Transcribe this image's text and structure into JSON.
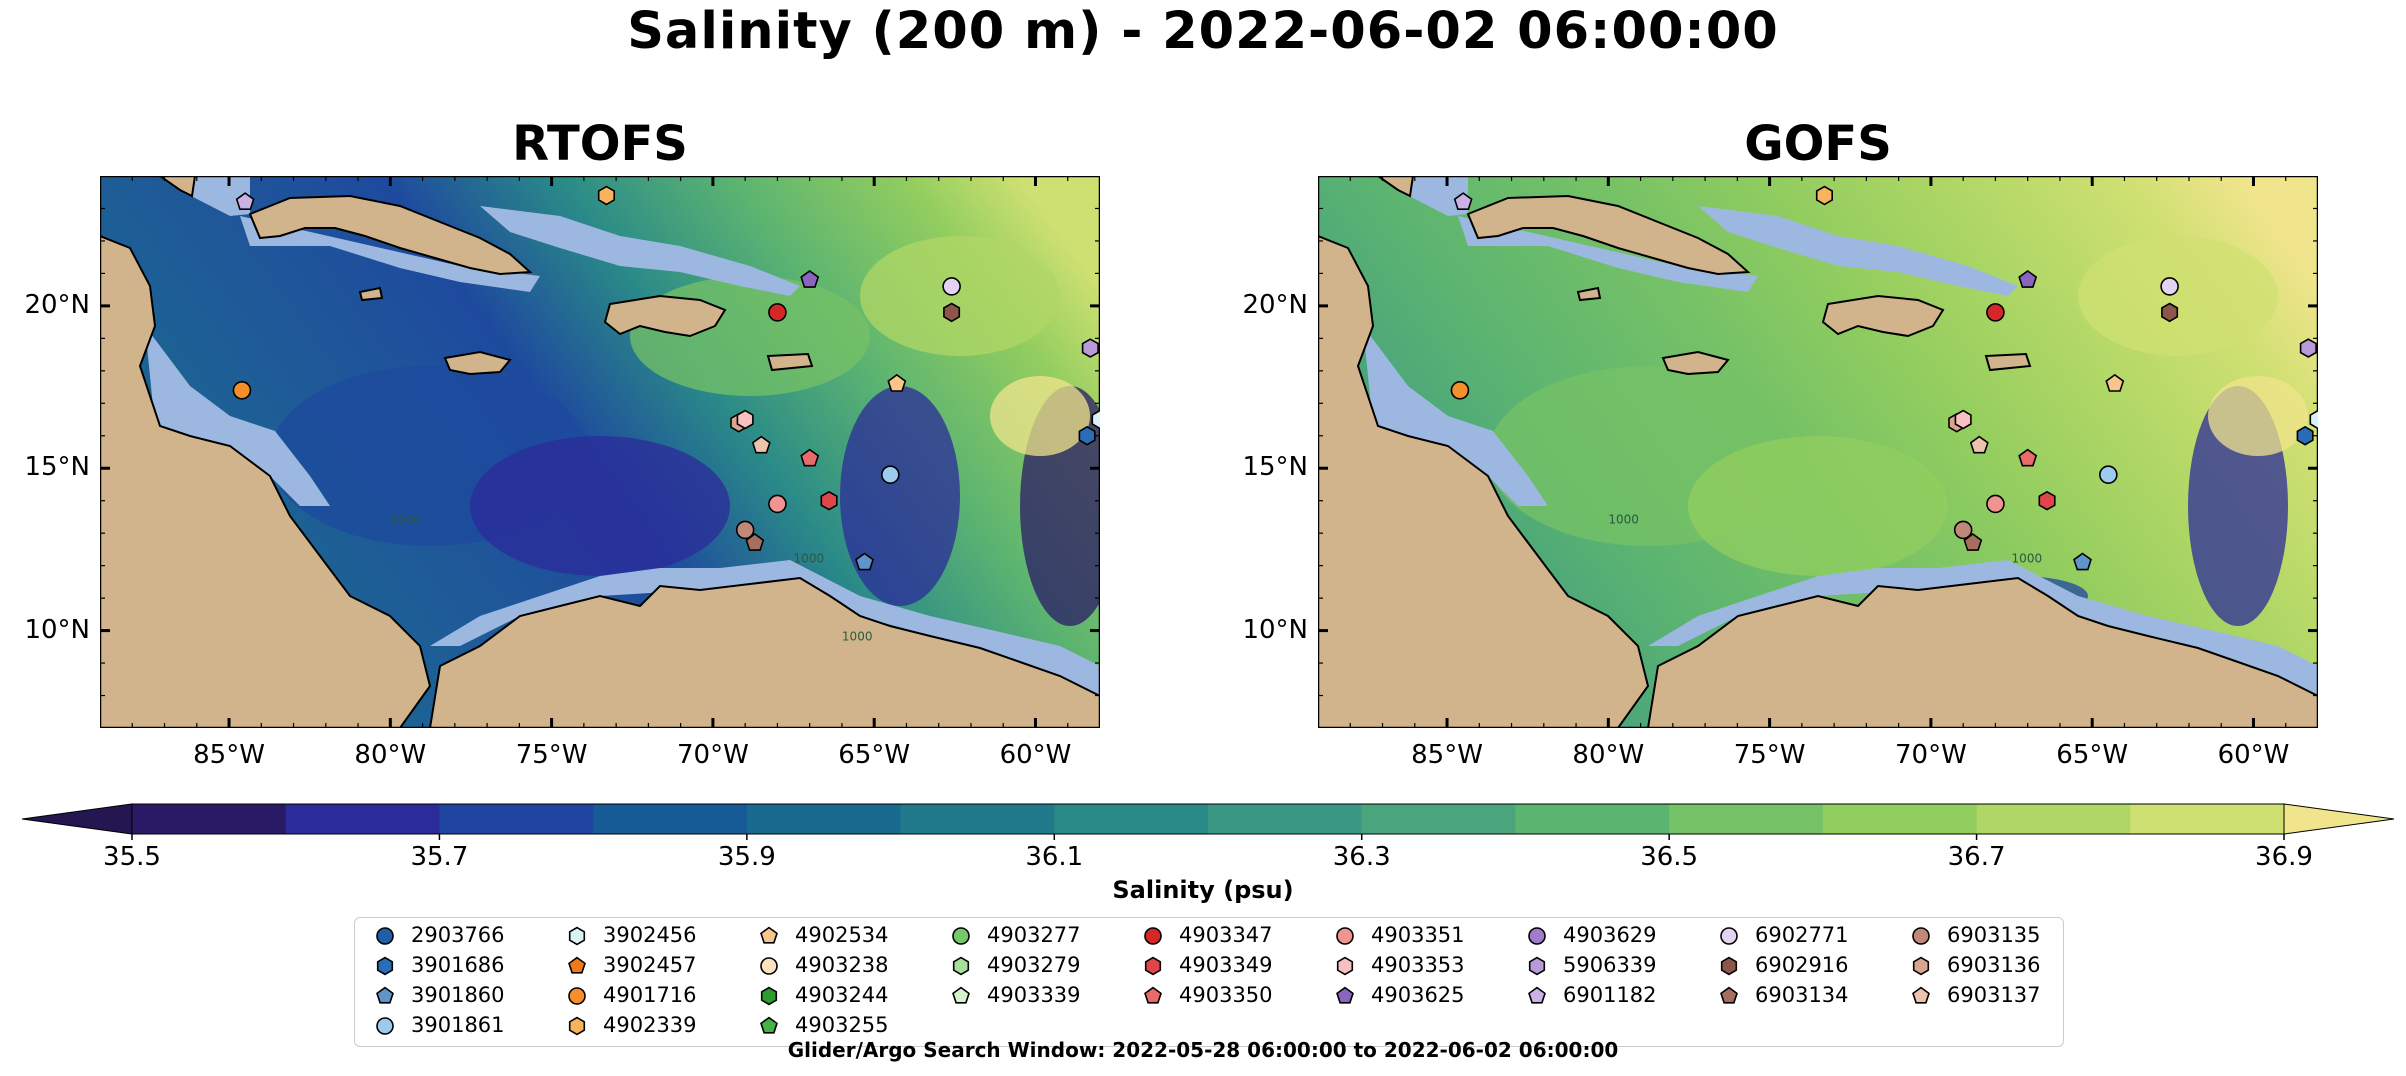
{
  "title": "Salinity (200 m) - 2022-06-02 06:00:00",
  "search_window": "Glider/Argo Search Window: 2022-05-28 06:00:00 to 2022-06-02 06:00:00",
  "colors": {
    "land": "#d2b48c",
    "shelf": "#9db8e0",
    "border": "#000000"
  },
  "chart_data": [
    {
      "type": "heatmap",
      "title": "RTOFS",
      "xlabel": "",
      "ylabel": "",
      "xlim": [
        -89,
        -58
      ],
      "ylim": [
        7,
        24
      ],
      "x_ticks": [
        -85,
        -80,
        -75,
        -70,
        -65,
        -60
      ],
      "x_tick_labels": [
        "85°W",
        "80°W",
        "75°W",
        "70°W",
        "65°W",
        "60°W"
      ],
      "y_ticks": [
        10,
        15,
        20
      ],
      "y_tick_labels": [
        "10°N",
        "15°N",
        "20°N"
      ],
      "contour_labels": [
        {
          "text": "1000",
          "x": -80,
          "y": 13.3
        },
        {
          "text": "1000",
          "x": -66,
          "y": 9.7
        },
        {
          "text": "1000",
          "x": -67.5,
          "y": 12.1
        }
      ],
      "field_description": "mostly 35.8-36.3 in the western and central Caribbean, 36.4-36.9 in the northeast"
    },
    {
      "type": "heatmap",
      "title": "GOFS",
      "xlabel": "",
      "ylabel": "",
      "xlim": [
        -89,
        -58
      ],
      "ylim": [
        7,
        24
      ],
      "x_ticks": [
        -85,
        -80,
        -75,
        -70,
        -65,
        -60
      ],
      "x_tick_labels": [
        "85°W",
        "80°W",
        "75°W",
        "70°W",
        "65°W",
        "60°W"
      ],
      "y_ticks": [
        10,
        15,
        20
      ],
      "y_tick_labels": [
        "10°N",
        "15°N",
        "20°N"
      ],
      "contour_labels": [
        {
          "text": "1000",
          "x": -80,
          "y": 13.3
        },
        {
          "text": "1000",
          "x": -67.5,
          "y": 12.1
        }
      ],
      "field_description": "mostly 36.3-36.8 across the basin, lower 35.6-36.0 along Lesser Antilles"
    }
  ],
  "colorbar": {
    "label": "Salinity (psu)",
    "levels": [
      35.5,
      35.6,
      35.7,
      35.8,
      35.9,
      36.0,
      36.1,
      36.2,
      36.3,
      36.4,
      36.5,
      36.6,
      36.7,
      36.8,
      36.9
    ],
    "tick_labels": [
      "35.5",
      "35.7",
      "35.9",
      "36.1",
      "36.3",
      "36.5",
      "36.7",
      "36.9"
    ],
    "colors": [
      "#2a1a66",
      "#2b2b9a",
      "#1f45a0",
      "#165a96",
      "#186b8e",
      "#207a8c",
      "#2a8a88",
      "#3a9783",
      "#4aa57c",
      "#5cb471",
      "#76c266",
      "#92cd5f",
      "#b0d766",
      "#cfe072"
    ],
    "extend_low": "#241650",
    "extend_high": "#f0e48c"
  },
  "legend": {
    "entries": [
      {
        "id": "2903766",
        "marker": "circle",
        "color": "#1f5fa8"
      },
      {
        "id": "3901686",
        "marker": "hexagon",
        "color": "#2b6cb8"
      },
      {
        "id": "3901860",
        "marker": "pentagon",
        "color": "#5f95c8"
      },
      {
        "id": "3901861",
        "marker": "circle",
        "color": "#9ccbef"
      },
      {
        "id": "3902456",
        "marker": "hexagon",
        "color": "#d8f2f5"
      },
      {
        "id": "3902457",
        "marker": "pentagon",
        "color": "#f07a1a"
      },
      {
        "id": "4901716",
        "marker": "circle",
        "color": "#f58f2c"
      },
      {
        "id": "4902339",
        "marker": "hexagon",
        "color": "#f8b35f"
      },
      {
        "id": "4902534",
        "marker": "pentagon",
        "color": "#f8c58a"
      },
      {
        "id": "4903238",
        "marker": "circle",
        "color": "#fde2bf"
      },
      {
        "id": "4903244",
        "marker": "hexagon",
        "color": "#2d9b2d"
      },
      {
        "id": "4903255",
        "marker": "pentagon",
        "color": "#45b245"
      },
      {
        "id": "4903277",
        "marker": "circle",
        "color": "#74c86a"
      },
      {
        "id": "4903279",
        "marker": "hexagon",
        "color": "#a6e09a"
      },
      {
        "id": "4903339",
        "marker": "pentagon",
        "color": "#d4f3cc"
      },
      {
        "id": "4903347",
        "marker": "circle",
        "color": "#d62728"
      },
      {
        "id": "4903349",
        "marker": "hexagon",
        "color": "#e0454a"
      },
      {
        "id": "4903350",
        "marker": "pentagon",
        "color": "#e86a6a"
      },
      {
        "id": "4903351",
        "marker": "circle",
        "color": "#f09492"
      },
      {
        "id": "4903353",
        "marker": "hexagon",
        "color": "#f8c0c0"
      },
      {
        "id": "4903625",
        "marker": "pentagon",
        "color": "#8a64be"
      },
      {
        "id": "4903629",
        "marker": "circle",
        "color": "#a07ccc"
      },
      {
        "id": "5906339",
        "marker": "hexagon",
        "color": "#b89ad8"
      },
      {
        "id": "6901182",
        "marker": "pentagon",
        "color": "#cbb2e4"
      },
      {
        "id": "6902771",
        "marker": "circle",
        "color": "#e3d2f2"
      },
      {
        "id": "6902916",
        "marker": "hexagon",
        "color": "#8c564b"
      },
      {
        "id": "6903134",
        "marker": "pentagon",
        "color": "#a56e5e"
      },
      {
        "id": "6903135",
        "marker": "circle",
        "color": "#c08878"
      },
      {
        "id": "6903136",
        "marker": "hexagon",
        "color": "#d8a590"
      },
      {
        "id": "6903137",
        "marker": "pentagon",
        "color": "#eec3ac"
      }
    ]
  },
  "floats": [
    {
      "id": "6901182",
      "lon": -84.5,
      "lat": 23.2
    },
    {
      "id": "4902339",
      "lon": -73.3,
      "lat": 23.4
    },
    {
      "id": "4903625",
      "lon": -67.0,
      "lat": 20.8
    },
    {
      "id": "6902771",
      "lon": -62.6,
      "lat": 20.6
    },
    {
      "id": "4903347",
      "lon": -68.0,
      "lat": 19.8
    },
    {
      "id": "6902916",
      "lon": -62.6,
      "lat": 19.8
    },
    {
      "id": "5906339",
      "lon": -58.3,
      "lat": 18.7
    },
    {
      "id": "4901716",
      "lon": -84.6,
      "lat": 17.4
    },
    {
      "id": "4902534",
      "lon": -64.3,
      "lat": 17.6
    },
    {
      "id": "3902456",
      "lon": -58.0,
      "lat": 16.5
    },
    {
      "id": "3901686",
      "lon": -58.4,
      "lat": 16.0
    },
    {
      "id": "6903136",
      "lon": -69.2,
      "lat": 16.4
    },
    {
      "id": "4903353",
      "lon": -69.0,
      "lat": 16.5
    },
    {
      "id": "6903137",
      "lon": -68.5,
      "lat": 15.7
    },
    {
      "id": "4903350",
      "lon": -67.0,
      "lat": 15.3
    },
    {
      "id": "3901861",
      "lon": -64.5,
      "lat": 14.8
    },
    {
      "id": "4903351",
      "lon": -68.0,
      "lat": 13.9
    },
    {
      "id": "4903349",
      "lon": -66.4,
      "lat": 14.0
    },
    {
      "id": "6903135",
      "lon": -69.0,
      "lat": 13.1
    },
    {
      "id": "6903134",
      "lon": -68.7,
      "lat": 12.7
    },
    {
      "id": "3901860",
      "lon": -65.3,
      "lat": 12.1
    }
  ]
}
